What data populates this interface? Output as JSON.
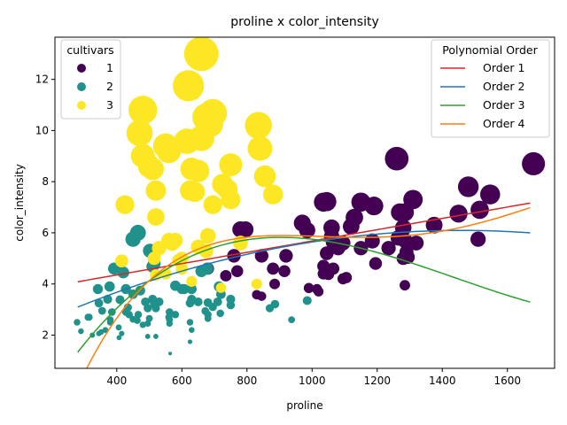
{
  "chart_data": {
    "type": "scatter",
    "title": "proline x color_intensity",
    "xlabel": "proline",
    "ylabel": "color_intensity",
    "xlim": [
      210,
      1745
    ],
    "ylim": [
      0.7,
      13.65
    ],
    "xticks": [
      400,
      600,
      800,
      1000,
      1200,
      1400,
      1600
    ],
    "yticks": [
      2,
      4,
      6,
      8,
      10,
      12
    ],
    "grid": false,
    "legends": [
      {
        "title": "cultivars",
        "placement": "top-left",
        "entries": [
          {
            "label": "1",
            "color": "#440154"
          },
          {
            "label": "2",
            "color": "#21918c"
          },
          {
            "label": "3",
            "color": "#fde725"
          }
        ]
      },
      {
        "title": "Polynomial Order",
        "placement": "top-right",
        "entries": [
          {
            "label": "Order 1",
            "color": "#d62728"
          },
          {
            "label": "Order 2",
            "color": "#1f77b4"
          },
          {
            "label": "Order 3",
            "color": "#2ca02c"
          },
          {
            "label": "Order 4",
            "color": "#ff7f0e"
          }
        ]
      }
    ],
    "series": [
      {
        "cultivar": "1",
        "color": "#440154",
        "points": [
          [
            1065,
            5.64
          ],
          [
            1050,
            4.38
          ],
          [
            1185,
            5.68
          ],
          [
            1480,
            7.8
          ],
          [
            735,
            4.32
          ],
          [
            1450,
            6.75
          ],
          [
            1290,
            5.25
          ],
          [
            1295,
            5.05
          ],
          [
            1045,
            5.2
          ],
          [
            1045,
            7.22
          ],
          [
            1510,
            5.75
          ],
          [
            1280,
            5.0
          ],
          [
            1320,
            5.6
          ],
          [
            1150,
            7.2
          ],
          [
            1547,
            7.5
          ],
          [
            1310,
            7.3
          ],
          [
            1280,
            6.2
          ],
          [
            1130,
            6.6
          ],
          [
            1680,
            8.7
          ],
          [
            845,
            5.1
          ],
          [
            780,
            6.13
          ],
          [
            770,
            4.5
          ],
          [
            1035,
            4.4
          ],
          [
            1015,
            3.8
          ],
          [
            845,
            3.52
          ],
          [
            830,
            3.58
          ],
          [
            1195,
            4.8
          ],
          [
            1285,
            3.95
          ],
          [
            915,
            4.5
          ],
          [
            1035,
            4.7
          ],
          [
            1285,
            5.7
          ],
          [
            1515,
            6.9
          ],
          [
            990,
            3.84
          ],
          [
            1235,
            5.4
          ],
          [
            1095,
            4.2
          ],
          [
            920,
            5.1
          ],
          [
            880,
            4.6
          ],
          [
            1105,
            4.25
          ],
          [
            1020,
            3.7
          ],
          [
            760,
            5.1
          ],
          [
            795,
            6.13
          ],
          [
            1035,
            7.2
          ],
          [
            1095,
            5.6
          ],
          [
            680,
            4.6
          ],
          [
            885,
            4.0
          ],
          [
            1080,
            5.4
          ],
          [
            1065,
            4.6
          ],
          [
            985,
            6.1
          ],
          [
            1060,
            6.2
          ],
          [
            1260,
            8.9
          ],
          [
            1150,
            5.4
          ],
          [
            1265,
            5.8
          ],
          [
            1190,
            7.05
          ],
          [
            1375,
            6.3
          ],
          [
            1060,
            5.85
          ],
          [
            1120,
            6.25
          ],
          [
            970,
            6.38
          ],
          [
            1270,
            6.8
          ],
          [
            1285,
            6.8
          ]
        ]
      },
      {
        "cultivar": "2",
        "color": "#21918c",
        "points": [
          [
            520,
            1.95
          ],
          [
            680,
            3.27
          ],
          [
            450,
            5.75
          ],
          [
            630,
            3.8
          ],
          [
            420,
            4.45
          ],
          [
            355,
            2.95
          ],
          [
            678,
            4.6
          ],
          [
            502,
            5.3
          ],
          [
            510,
            4.68
          ],
          [
            750,
            3.17
          ],
          [
            718,
            2.85
          ],
          [
            870,
            3.05
          ],
          [
            410,
            3.38
          ],
          [
            472,
            3.74
          ],
          [
            985,
            3.35
          ],
          [
            886,
            3.21
          ],
          [
            428,
            3.8
          ],
          [
            392,
            4.6
          ],
          [
            500,
            2.65
          ],
          [
            750,
            3.4
          ],
          [
            463,
            2.57
          ],
          [
            278,
            2.5
          ],
          [
            714,
            3.9
          ],
          [
            630,
            2.2
          ],
          [
            515,
            4.8
          ],
          [
            520,
            3.05
          ],
          [
            450,
            2.62
          ],
          [
            495,
            2.45
          ],
          [
            562,
            2.6
          ],
          [
            680,
            2.8
          ],
          [
            625,
            1.74
          ],
          [
            480,
            2.4
          ],
          [
            450,
            3.6
          ],
          [
            495,
            3.05
          ],
          [
            290,
            2.15
          ],
          [
            345,
            3.25
          ],
          [
            937,
            2.6
          ],
          [
            625,
            2.5
          ],
          [
            428,
            2.9
          ],
          [
            660,
            4.5
          ],
          [
            406,
            2.3
          ],
          [
            710,
            3.3
          ],
          [
            562,
            2.45
          ],
          [
            438,
            2.8
          ],
          [
            415,
            2.06
          ],
          [
            672,
            2.94
          ],
          [
            315,
            2.7
          ],
          [
            510,
            3.4
          ],
          [
            488,
            3.3
          ],
          [
            312,
            2.7
          ],
          [
            680,
            2.65
          ],
          [
            562,
            2.9
          ],
          [
            325,
            2.0
          ],
          [
            607,
            3.8
          ],
          [
            434,
            3.08
          ],
          [
            385,
            2.9
          ],
          [
            407,
            1.9
          ],
          [
            495,
            1.95
          ],
          [
            345,
            2.06
          ],
          [
            372,
            3.4
          ],
          [
            564,
            1.28
          ],
          [
            625,
            3.25
          ],
          [
            465,
            6.0
          ],
          [
            365,
            2.2
          ],
          [
            380,
            2.6
          ],
          [
            380,
            2.5
          ],
          [
            378,
            3.9
          ],
          [
            352,
            2.12
          ],
          [
            466,
            2.8
          ],
          [
            342,
            3.8
          ],
          [
            580,
            3.93
          ],
          [
            630,
            3.4
          ],
          [
            530,
            3.3
          ],
          [
            560,
            2.7
          ],
          [
            600,
            3.8
          ],
          [
            650,
            3.3
          ],
          [
            695,
            3.1
          ],
          [
            720,
            3.6
          ],
          [
            515,
            3.2
          ],
          [
            580,
            2.8
          ]
        ]
      },
      {
        "cultivar": "3",
        "color": "#fde725",
        "points": [
          [
            630,
            4.1
          ],
          [
            530,
            5.4
          ],
          [
            560,
            5.7
          ],
          [
            600,
            5.0
          ],
          [
            650,
            5.45
          ],
          [
            695,
            7.1
          ],
          [
            720,
            3.85
          ],
          [
            515,
            5.0
          ],
          [
            580,
            5.7
          ],
          [
            590,
            4.92
          ],
          [
            600,
            4.6
          ],
          [
            780,
            5.6
          ],
          [
            520,
            4.35
          ],
          [
            550,
            4.4
          ],
          [
            855,
            8.21
          ],
          [
            830,
            4.0
          ],
          [
            415,
            4.9
          ],
          [
            625,
            7.65
          ],
          [
            650,
            8.42
          ],
          [
            550,
            9.4
          ],
          [
            500,
            8.6
          ],
          [
            480,
            10.8
          ],
          [
            425,
            7.1
          ],
          [
            675,
            10.52
          ],
          [
            640,
            7.6
          ],
          [
            725,
            7.9
          ],
          [
            480,
            9.01
          ],
          [
            880,
            7.5
          ],
          [
            660,
            13.0
          ],
          [
            620,
            11.75
          ],
          [
            520,
            7.65
          ],
          [
            680,
            5.88
          ],
          [
            570,
            5.58
          ],
          [
            675,
            5.28
          ],
          [
            615,
            9.58
          ],
          [
            520,
            6.62
          ],
          [
            695,
            10.68
          ],
          [
            685,
            10.26
          ],
          [
            750,
            8.66
          ],
          [
            510,
            8.5
          ],
          [
            470,
            9.899
          ],
          [
            660,
            9.7
          ],
          [
            740,
            7.7
          ],
          [
            750,
            7.3
          ],
          [
            835,
            10.2
          ],
          [
            840,
            9.3
          ],
          [
            560,
            9.2
          ],
          [
            630,
            8.5
          ]
        ]
      }
    ],
    "fits": [
      {
        "name": "Order 1",
        "color": "#d62728",
        "coef": [
          3.4658,
          0.0022135
        ]
      },
      {
        "name": "Order 2",
        "color": "#1f77b4",
        "coef": [
          1.5,
          0.0063,
          -2.16e-06
        ]
      },
      {
        "name": "Order 3",
        "color": "#2ca02c",
        "coef": [
          -4.8,
          0.02775,
          -2.24e-05,
          5.2e-09
        ]
      },
      {
        "name": "Order 4",
        "color": "#ff7f0e",
        "coef": [
          -11.96,
          0.06048,
          -7.4e-05,
          3.83e-08,
          -6.95e-12
        ]
      }
    ],
    "fit_x_range": [
      280,
      1670
    ]
  }
}
